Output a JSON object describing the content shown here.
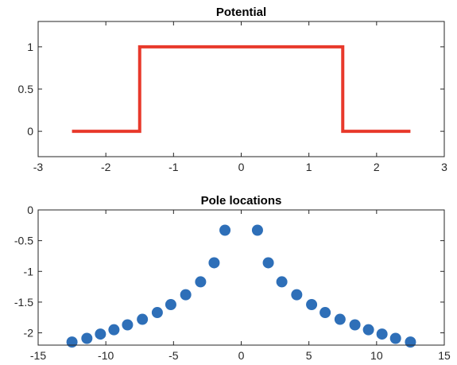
{
  "chart_data": [
    {
      "type": "line",
      "title": "Potential",
      "xlim": [
        -3,
        3
      ],
      "ylim": [
        -0.3,
        1.3
      ],
      "xticks": [
        -3,
        -2,
        -1,
        0,
        1,
        2,
        3
      ],
      "yticks": [
        0,
        0.5,
        1
      ],
      "xticklabels": [
        "-3",
        "-2",
        "-1",
        "0",
        "1",
        "2",
        "3"
      ],
      "yticklabels": [
        "0",
        "0.5",
        "1"
      ],
      "grid": false,
      "color": "#e8392b",
      "series": [
        {
          "x": [
            -2.5,
            -1.5,
            -1.5,
            1.5,
            1.5,
            2.5
          ],
          "y": [
            0,
            0,
            1,
            1,
            0,
            0
          ]
        }
      ]
    },
    {
      "type": "scatter",
      "title": "Pole locations",
      "xlim": [
        -15,
        15
      ],
      "ylim": [
        -2.2,
        0
      ],
      "xticks": [
        -15,
        -10,
        -5,
        0,
        5,
        10,
        15
      ],
      "yticks": [
        0,
        -0.5,
        -1,
        -1.5,
        -2
      ],
      "xticklabels": [
        "-15",
        "-10",
        "-5",
        "0",
        "5",
        "10",
        "15"
      ],
      "yticklabels": [
        "0",
        "-0.5",
        "-1",
        "-1.5",
        "-2"
      ],
      "grid": false,
      "color": "#2e6fb8",
      "series": [
        {
          "x": [
            -12.5,
            -11.4,
            -10.4,
            -9.4,
            -8.4,
            -7.3,
            -6.2,
            -5.2,
            -4.1,
            -3.0,
            -2.0,
            -1.2,
            1.2,
            2.0,
            3.0,
            4.1,
            5.2,
            6.2,
            7.3,
            8.4,
            9.4,
            10.4,
            11.4,
            12.5
          ],
          "y": [
            -2.15,
            -2.09,
            -2.02,
            -1.95,
            -1.87,
            -1.78,
            -1.67,
            -1.54,
            -1.38,
            -1.17,
            -0.86,
            -0.33,
            -0.33,
            -0.86,
            -1.17,
            -1.38,
            -1.54,
            -1.67,
            -1.78,
            -1.87,
            -1.95,
            -2.02,
            -2.09,
            -2.15
          ]
        }
      ]
    }
  ]
}
